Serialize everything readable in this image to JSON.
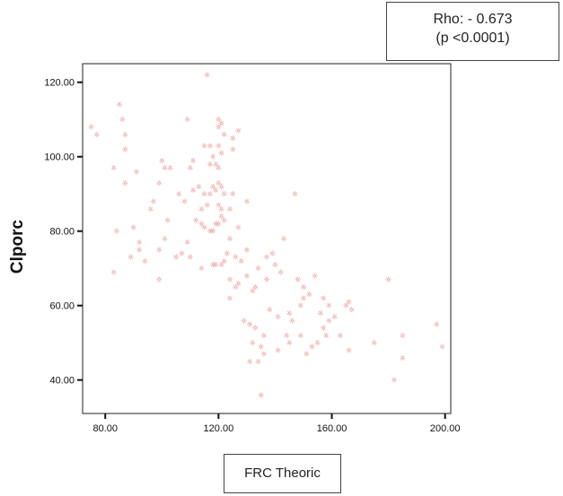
{
  "annotation": {
    "rho": "Rho: - 0.673",
    "p": "(p <0.0001)"
  },
  "chart_data": {
    "type": "scatter",
    "xlabel": "FRC Theoric",
    "ylabel": "Clporc",
    "xlim": [
      72,
      202
    ],
    "ylim": [
      31,
      125
    ],
    "xticks": [
      80,
      120,
      160,
      200
    ],
    "yticks": [
      40,
      60,
      80,
      100,
      120
    ],
    "xtick_labels": [
      "80.00",
      "120.00",
      "160.00",
      "200.00"
    ],
    "ytick_labels": [
      "40.00",
      "60.00",
      "80.00",
      "100.00",
      "120.00"
    ],
    "grid": false,
    "marker_color": "#e06060",
    "marker_glyph": "☼",
    "points": [
      [
        75,
        108
      ],
      [
        77,
        106
      ],
      [
        83,
        97
      ],
      [
        84,
        80
      ],
      [
        83,
        69
      ],
      [
        85,
        114
      ],
      [
        86,
        110
      ],
      [
        87,
        106
      ],
      [
        87,
        102
      ],
      [
        87,
        93
      ],
      [
        89,
        73
      ],
      [
        90,
        81
      ],
      [
        91,
        96
      ],
      [
        92,
        75
      ],
      [
        92,
        77
      ],
      [
        94,
        72
      ],
      [
        96,
        86
      ],
      [
        97,
        88
      ],
      [
        99,
        75
      ],
      [
        99,
        67
      ],
      [
        99,
        93
      ],
      [
        100,
        99
      ],
      [
        101,
        97
      ],
      [
        101,
        78
      ],
      [
        102,
        83
      ],
      [
        103,
        97
      ],
      [
        105,
        73
      ],
      [
        106,
        90
      ],
      [
        107,
        74
      ],
      [
        108,
        88
      ],
      [
        109,
        110
      ],
      [
        109,
        77
      ],
      [
        110,
        73
      ],
      [
        110,
        97
      ],
      [
        111,
        91
      ],
      [
        111,
        99
      ],
      [
        112,
        83
      ],
      [
        113,
        92
      ],
      [
        114,
        82
      ],
      [
        114,
        86
      ],
      [
        114,
        70
      ],
      [
        115,
        81
      ],
      [
        115,
        103
      ],
      [
        115,
        90
      ],
      [
        116,
        122
      ],
      [
        116,
        87
      ],
      [
        117,
        103
      ],
      [
        117,
        98
      ],
      [
        117,
        90
      ],
      [
        117,
        80
      ],
      [
        118,
        71
      ],
      [
        118,
        80
      ],
      [
        118,
        100
      ],
      [
        118,
        92
      ],
      [
        119,
        71
      ],
      [
        119,
        82
      ],
      [
        119,
        91
      ],
      [
        119,
        98
      ],
      [
        120,
        110
      ],
      [
        120,
        108
      ],
      [
        120,
        103
      ],
      [
        120,
        97
      ],
      [
        120,
        93
      ],
      [
        120,
        87
      ],
      [
        120,
        82
      ],
      [
        121,
        109
      ],
      [
        121,
        101
      ],
      [
        121,
        92
      ],
      [
        121,
        86
      ],
      [
        121,
        84
      ],
      [
        121,
        71
      ],
      [
        122,
        106
      ],
      [
        122,
        90
      ],
      [
        122,
        72
      ],
      [
        122,
        83
      ],
      [
        123,
        74
      ],
      [
        124,
        67
      ],
      [
        124,
        62
      ],
      [
        124,
        78
      ],
      [
        124,
        86
      ],
      [
        125,
        102
      ],
      [
        125,
        90
      ],
      [
        125,
        105
      ],
      [
        126,
        65
      ],
      [
        126,
        73
      ],
      [
        127,
        107
      ],
      [
        127,
        81
      ],
      [
        127,
        66
      ],
      [
        128,
        72
      ],
      [
        129,
        56
      ],
      [
        130,
        88
      ],
      [
        130,
        75
      ],
      [
        130,
        68
      ],
      [
        131,
        45
      ],
      [
        131,
        55
      ],
      [
        132,
        50
      ],
      [
        132,
        64
      ],
      [
        133,
        54
      ],
      [
        133,
        65
      ],
      [
        134,
        45
      ],
      [
        134,
        70
      ],
      [
        135,
        36
      ],
      [
        135,
        49
      ],
      [
        136,
        47
      ],
      [
        136,
        52
      ],
      [
        137,
        73
      ],
      [
        137,
        67
      ],
      [
        138,
        59
      ],
      [
        139,
        74
      ],
      [
        140,
        71
      ],
      [
        141,
        48
      ],
      [
        141,
        57
      ],
      [
        142,
        69
      ],
      [
        143,
        78
      ],
      [
        144,
        52
      ],
      [
        145,
        50
      ],
      [
        145,
        58
      ],
      [
        146,
        56
      ],
      [
        147,
        90
      ],
      [
        148,
        67
      ],
      [
        149,
        52
      ],
      [
        149,
        60
      ],
      [
        150,
        65
      ],
      [
        150,
        62
      ],
      [
        151,
        47
      ],
      [
        152,
        63
      ],
      [
        153,
        49
      ],
      [
        154,
        68
      ],
      [
        155,
        50
      ],
      [
        156,
        58
      ],
      [
        157,
        54
      ],
      [
        157,
        62
      ],
      [
        158,
        52
      ],
      [
        159,
        56
      ],
      [
        159,
        60
      ],
      [
        161,
        57
      ],
      [
        163,
        52
      ],
      [
        165,
        60
      ],
      [
        166,
        48
      ],
      [
        166,
        61
      ],
      [
        167,
        59
      ],
      [
        175,
        50
      ],
      [
        180,
        67
      ],
      [
        182,
        40
      ],
      [
        185,
        52
      ],
      [
        185,
        46
      ],
      [
        197,
        55
      ],
      [
        199,
        49
      ]
    ]
  }
}
